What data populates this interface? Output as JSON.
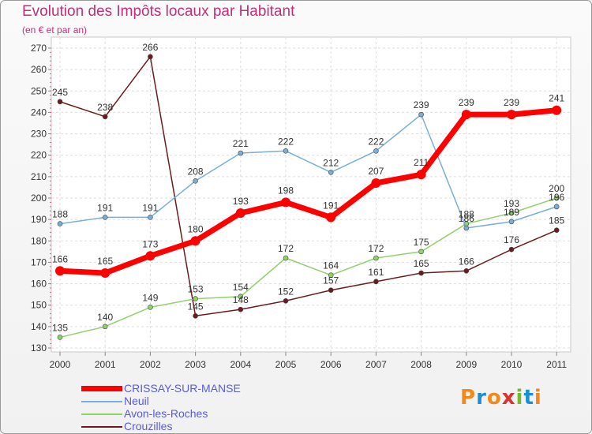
{
  "title": "Evolution des Impôts locaux par Habitant",
  "subtitle": "(en € et par an)",
  "logo": {
    "letters": [
      "P",
      "r",
      "o",
      "x",
      "i",
      "t",
      "i"
    ],
    "colors": [
      "#f08a1c",
      "#1a8fd6",
      "#f08a1c",
      "#e0302a",
      "#79b82c",
      "#1a8fd6",
      "#f08a1c"
    ]
  },
  "chart_data": {
    "type": "line",
    "categories": [
      "2000",
      "2001",
      "2002",
      "2003",
      "2004",
      "2005",
      "2006",
      "2007",
      "2008",
      "2009",
      "2010",
      "2011"
    ],
    "ylim": [
      130,
      270
    ],
    "yticks": [
      130,
      140,
      150,
      160,
      170,
      180,
      190,
      200,
      210,
      220,
      230,
      240,
      250,
      260,
      270
    ],
    "grid": true,
    "legend_position": "bottom-left",
    "series": [
      {
        "name": "Crouzilles",
        "color": "#6b1b1e",
        "values": [
          245,
          238,
          266,
          145,
          148,
          152,
          157,
          161,
          165,
          166,
          176,
          185
        ]
      },
      {
        "name": "Avon-les-Roches",
        "color": "#8fd16a",
        "values": [
          135,
          140,
          149,
          153,
          154,
          172,
          164,
          172,
          175,
          188,
          193,
          200
        ]
      },
      {
        "name": "Neuil",
        "color": "#7aaed6",
        "values": [
          188,
          191,
          191,
          208,
          221,
          222,
          212,
          222,
          239,
          186,
          189,
          196
        ]
      },
      {
        "name": "CRISSAY-SUR-MANSE",
        "color": "#ff0000",
        "values": [
          166,
          165,
          173,
          180,
          193,
          198,
          191,
          207,
          211,
          239,
          239,
          241
        ]
      }
    ],
    "legend_order": [
      "CRISSAY-SUR-MANSE",
      "Neuil",
      "Avon-les-Roches",
      "Crouzilles"
    ]
  }
}
